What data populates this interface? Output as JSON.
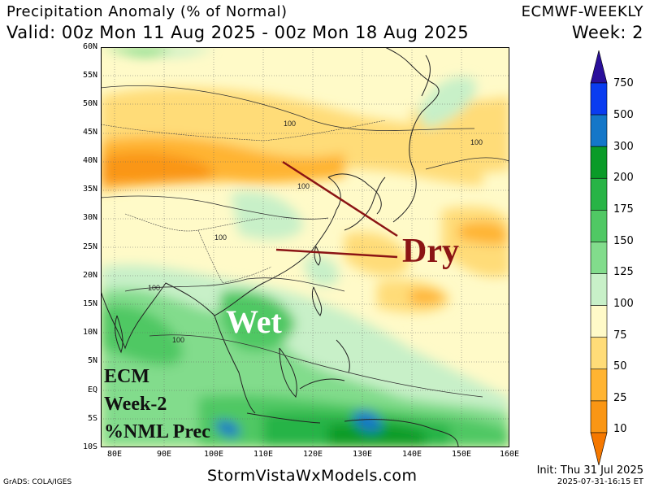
{
  "header": {
    "title": "Precipitation Anomaly (% of Normal)",
    "valid": "Valid: 00z Mon 11 Aug 2025 - 00z Mon 18 Aug 2025",
    "model": "ECMWF-WEEKLY",
    "week": "Week: 2"
  },
  "map": {
    "lat_labels": [
      "60N",
      "55N",
      "50N",
      "45N",
      "40N",
      "35N",
      "30N",
      "25N",
      "20N",
      "15N",
      "10N",
      "5N",
      "EQ",
      "5S",
      "10S"
    ],
    "lon_labels": [
      "80E",
      "90E",
      "100E",
      "110E",
      "120E",
      "130E",
      "140E",
      "150E",
      "160E"
    ],
    "contour_labels": [
      "100",
      "100",
      "100",
      "100",
      "100",
      "100"
    ],
    "annotations": {
      "dry": "Dry",
      "wet": "Wet",
      "ecm_line1": "ECM",
      "ecm_line2": "Week-2",
      "ecm_line3": "%NML Prec"
    }
  },
  "colorbar": {
    "labels": [
      "750",
      "500",
      "300",
      "200",
      "175",
      "150",
      "125",
      "100",
      "75",
      "50",
      "25",
      "10"
    ],
    "colors": [
      "#2a0f9b",
      "#0a3cf0",
      "#1477c8",
      "#0a9b28",
      "#28b446",
      "#50c864",
      "#82dc8c",
      "#c8f0c8",
      "#fffac8",
      "#ffdc78",
      "#ffb432",
      "#fa9614",
      "#f57800"
    ]
  },
  "footer": {
    "site": "StormVistaWxModels.com",
    "grads": "GrADS: COLA/IGES",
    "init": "Init: Thu 31 Jul 2025",
    "timestamp": "2025-07-31-16:15 ET"
  }
}
